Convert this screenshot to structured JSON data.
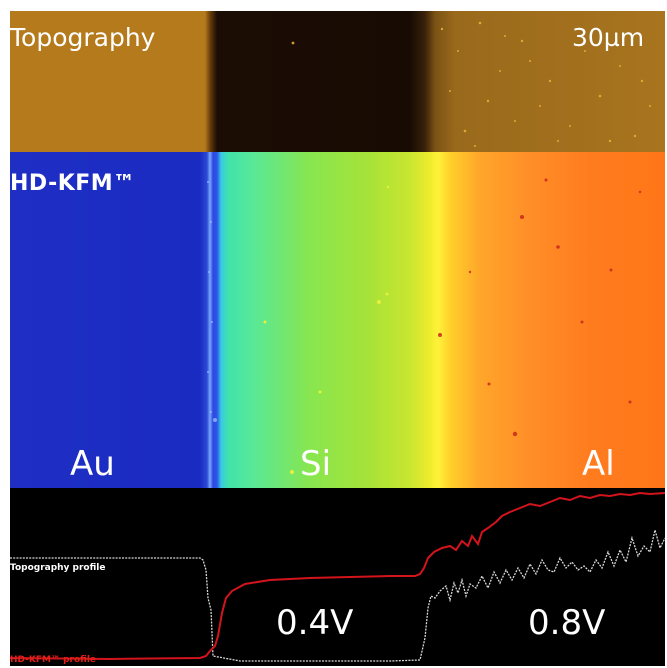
{
  "labels": {
    "topography": "Topography",
    "scale": "30µm",
    "kfm": "HD-KFM™",
    "material_1": "Au",
    "material_2": "Si",
    "material_3": "Al",
    "potential_1": "0.4V",
    "potential_2": "0.8V",
    "topography_profile": "Topography profile",
    "kfm_profile": "HD-KFM™ profile"
  },
  "colors": {
    "topography_trace": "#d8d8d8",
    "kfm_trace": "#d4141c",
    "gold_region": "#1f2fc4",
    "silicon_region": "#8ee64c",
    "aluminum_region": "#ff7a1c"
  }
}
